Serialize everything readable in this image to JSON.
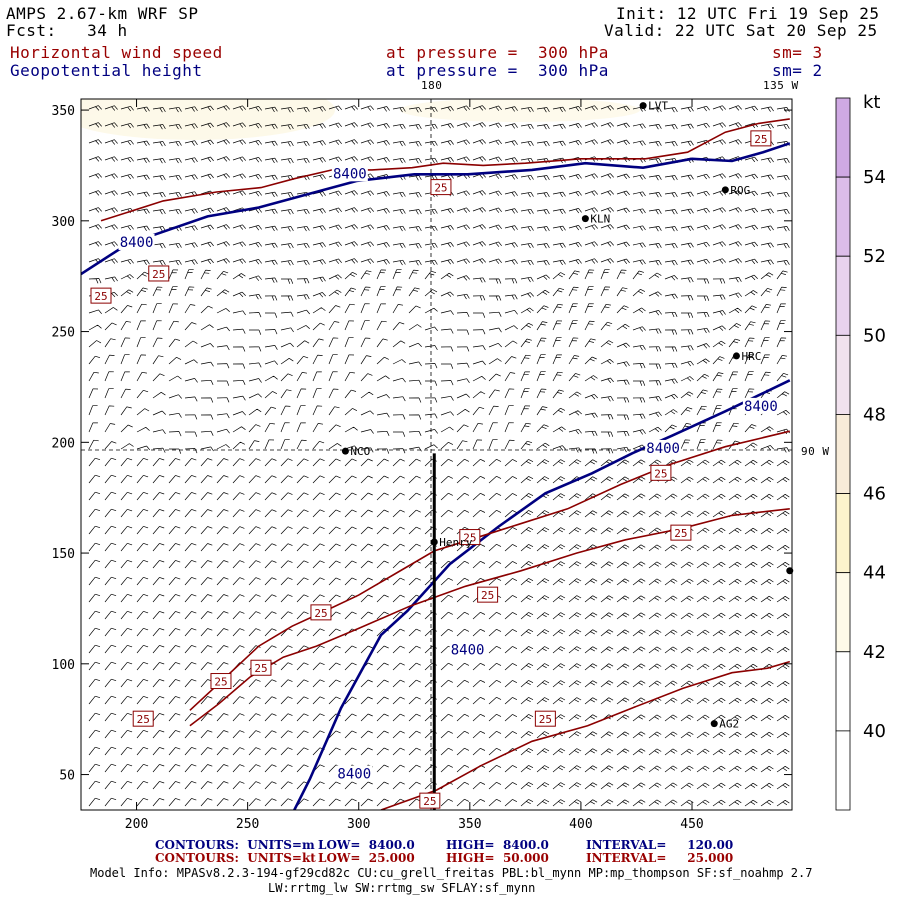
{
  "header": {
    "model": "AMPS 2.67-km WRF SP",
    "forecast": "Fcst:   34 h",
    "init": "Init: 12 UTC Fri 19 Sep 25",
    "valid": "Valid: 22 UTC Sat 20 Sep 25",
    "field1_name": "Horizontal wind speed",
    "field1_level": "at pressure =  300 hPa",
    "field1_sm": "sm= 3",
    "field2_name": "Geopotential height",
    "field2_level": "at pressure =  300 hPa",
    "field2_sm": "sm= 2"
  },
  "map_labels": {
    "lon_180": "180",
    "lon_135w": "135 W",
    "lon_90w": "90 W",
    "stations": [
      {
        "name": "LVT",
        "x": 428,
        "y": 352
      },
      {
        "name": "ROG",
        "x": 465,
        "y": 314
      },
      {
        "name": "KLN",
        "x": 402,
        "y": 301
      },
      {
        "name": "HRC",
        "x": 470,
        "y": 239
      },
      {
        "name": "NCO",
        "x": 294,
        "y": 196
      },
      {
        "name": "Henry",
        "x": 334,
        "y": 155
      },
      {
        "name": "AG2",
        "x": 460,
        "y": 73
      },
      {
        "name": "",
        "x": 494,
        "y": 142
      }
    ]
  },
  "colorbar": {
    "unit": "kt",
    "levels": [
      "54",
      "52",
      "50",
      "48",
      "46",
      "44",
      "42",
      "40"
    ],
    "colors": [
      "#ffffff",
      "#fefae8",
      "#fcf3cc",
      "#f8ecd9",
      "#f1e2ee",
      "#e8d2ee",
      "#dcbde9",
      "#cfa9e3"
    ]
  },
  "chart_data": {
    "type": "contour",
    "title": "Horizontal wind speed and Geopotential height at 300 hPa",
    "xlabel": "",
    "ylabel": "",
    "xlim": [
      175,
      495
    ],
    "ylim": [
      34,
      355
    ],
    "x_ticks": [
      200,
      250,
      300,
      350,
      400,
      450
    ],
    "y_ticks": [
      50,
      100,
      150,
      200,
      250,
      300,
      350
    ],
    "contour_labels": [
      "8400",
      "25"
    ],
    "series": [
      {
        "name": "Geopotential height 8400 m",
        "color": "#000080",
        "points": [
          [
            271,
            34
          ],
          [
            278,
            48
          ],
          [
            292,
            80
          ],
          [
            310,
            113
          ],
          [
            322,
            124
          ],
          [
            341,
            145
          ],
          [
            363,
            162
          ],
          [
            384,
            177
          ],
          [
            405,
            186
          ],
          [
            423,
            195
          ],
          [
            441,
            203
          ],
          [
            465,
            214
          ],
          [
            494,
            228
          ]
        ],
        "labels": [
          {
            "x": 298,
            "y": 50
          },
          {
            "x": 349,
            "y": 106
          },
          {
            "x": 437,
            "y": 197
          },
          {
            "x": 481,
            "y": 216
          }
        ]
      },
      {
        "name": "Geopotential height 8400 m (north)",
        "color": "#000080",
        "points": [
          [
            175,
            276
          ],
          [
            192,
            287
          ],
          [
            206,
            293
          ],
          [
            232,
            302
          ],
          [
            255,
            306
          ],
          [
            277,
            312
          ],
          [
            299,
            318
          ],
          [
            325,
            321
          ],
          [
            349,
            321
          ],
          [
            378,
            323
          ],
          [
            402,
            326
          ],
          [
            428,
            324
          ],
          [
            450,
            328
          ],
          [
            468,
            327
          ],
          [
            482,
            331
          ],
          [
            494,
            335
          ]
        ],
        "labels": [
          {
            "x": 200,
            "y": 290
          },
          {
            "x": 296,
            "y": 321
          }
        ]
      },
      {
        "name": "Wind speed 25 kt (a)",
        "color": "#8b0000",
        "points": [
          [
            184,
            300
          ],
          [
            212,
            309
          ],
          [
            236,
            313
          ],
          [
            256,
            315
          ],
          [
            271,
            319
          ],
          [
            288,
            323
          ],
          [
            306,
            323
          ],
          [
            324,
            324
          ],
          [
            338,
            326
          ],
          [
            356,
            325
          ],
          [
            375,
            326
          ],
          [
            400,
            328
          ],
          [
            429,
            328
          ],
          [
            448,
            331
          ],
          [
            465,
            340
          ],
          [
            480,
            344
          ],
          [
            494,
            346
          ]
        ],
        "labels": [
          {
            "x": 184,
            "y": 266
          },
          {
            "x": 210,
            "y": 276
          },
          {
            "x": 337,
            "y": 315
          },
          {
            "x": 481,
            "y": 337
          }
        ]
      },
      {
        "name": "Wind speed 25 kt (b)",
        "color": "#8b0000",
        "points": [
          [
            224,
            79
          ],
          [
            238,
            92
          ],
          [
            255,
            108
          ],
          [
            270,
            117
          ],
          [
            283,
            123
          ],
          [
            300,
            131
          ],
          [
            317,
            141
          ],
          [
            334,
            151
          ],
          [
            350,
            156
          ],
          [
            372,
            163
          ],
          [
            394,
            170
          ],
          [
            418,
            181
          ],
          [
            440,
            190
          ],
          [
            465,
            198
          ],
          [
            494,
            205
          ]
        ],
        "labels": [
          {
            "x": 238,
            "y": 92
          },
          {
            "x": 283,
            "y": 123
          },
          {
            "x": 350,
            "y": 157
          },
          {
            "x": 436,
            "y": 186
          }
        ]
      },
      {
        "name": "Wind speed 25 kt (c)",
        "color": "#8b0000",
        "points": [
          [
            224,
            72
          ],
          [
            237,
            82
          ],
          [
            251,
            94
          ],
          [
            266,
            103
          ],
          [
            281,
            108
          ],
          [
            300,
            116
          ],
          [
            323,
            126
          ],
          [
            348,
            135
          ],
          [
            373,
            142
          ],
          [
            398,
            150
          ],
          [
            420,
            156
          ],
          [
            445,
            161
          ],
          [
            468,
            167
          ],
          [
            494,
            170
          ]
        ],
        "labels": [
          {
            "x": 256,
            "y": 98
          },
          {
            "x": 358,
            "y": 131
          },
          {
            "x": 445,
            "y": 159
          }
        ]
      },
      {
        "name": "Wind speed 25 kt (d)",
        "color": "#8b0000",
        "points": [
          [
            310,
            34
          ],
          [
            335,
            43
          ],
          [
            355,
            54
          ],
          [
            378,
            65
          ],
          [
            403,
            72
          ],
          [
            423,
            80
          ],
          [
            446,
            89
          ],
          [
            468,
            96
          ],
          [
            484,
            98
          ],
          [
            494,
            101
          ]
        ],
        "labels": [
          {
            "x": 203,
            "y": 75
          },
          {
            "x": 332,
            "y": 38
          },
          {
            "x": 384,
            "y": 75
          }
        ]
      }
    ],
    "cross_section": {
      "x": 334,
      "y_start": 34,
      "y_end": 195
    }
  },
  "footer": {
    "line1_label": "CONTOURS:  UNITS=m",
    "line1_low": "LOW=  8400.0",
    "line1_high": "HIGH=  8400.0",
    "line1_interval": "INTERVAL=     120.00",
    "line2_label": "CONTOURS:  UNITS=kt",
    "line2_low": "LOW=  25.000",
    "line2_high": "HIGH=  50.000",
    "line2_interval": "INTERVAL=     25.000",
    "model_info": "Model Info: MPASv8.2.3-194-gf29cd82c CU:cu_grell_freitas PBL:bl_mynn MP:mp_thompson SF:sf_noahmp 2.7",
    "model_info2": "LW:rrtmg_lw SW:rrtmg_sw SFLAY:sf_mynn"
  }
}
